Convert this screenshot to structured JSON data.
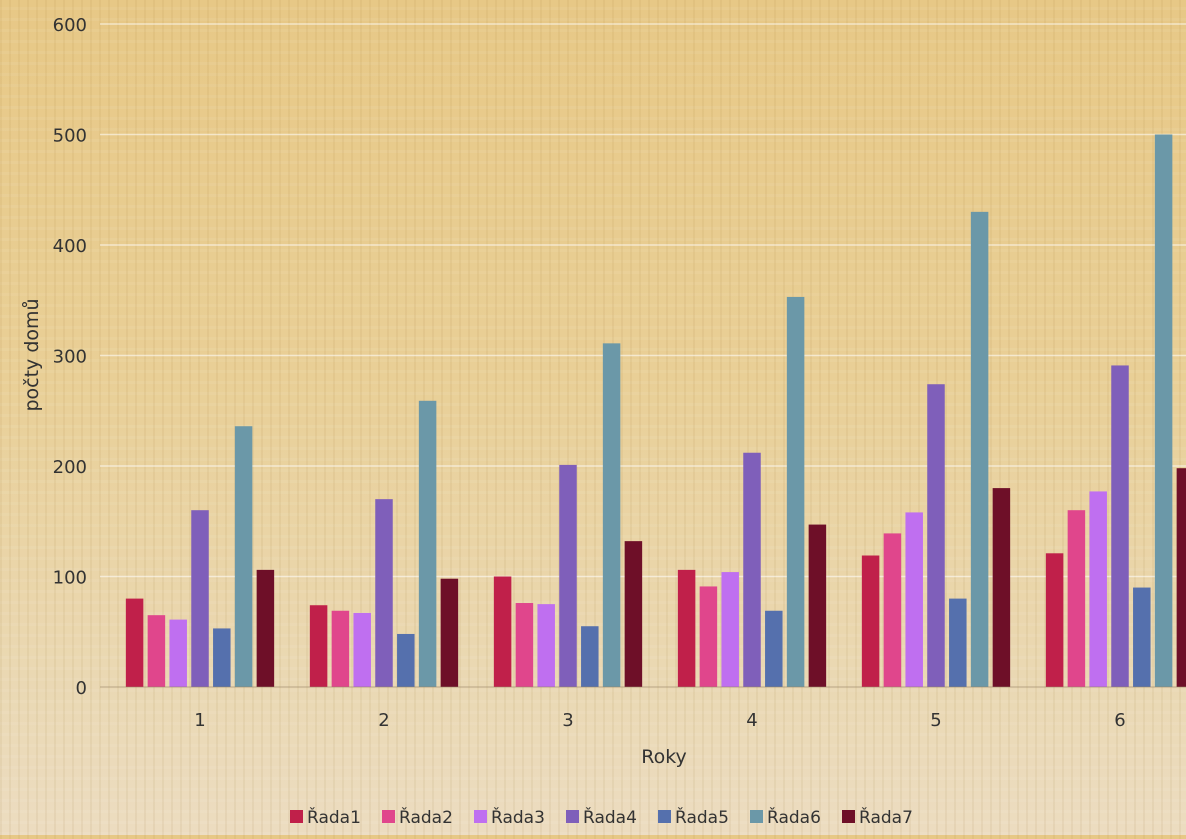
{
  "chart_data": {
    "type": "bar",
    "categories": [
      "1",
      "2",
      "3",
      "4",
      "5",
      "6"
    ],
    "xlabel": "Roky",
    "ylabel": "počty domů",
    "ylim": [
      0,
      600
    ],
    "yticks": [
      0,
      100,
      200,
      300,
      400,
      500,
      600
    ],
    "grid": true,
    "legend_position": "bottom",
    "series": [
      {
        "name": "Řada1",
        "color": "#c0204a",
        "values": [
          80,
          74,
          100,
          106,
          119,
          121
        ]
      },
      {
        "name": "Řada2",
        "color": "#e0468c",
        "values": [
          65,
          69,
          76,
          91,
          139,
          160
        ]
      },
      {
        "name": "Řada3",
        "color": "#bf6ff0",
        "values": [
          61,
          67,
          75,
          104,
          158,
          177
        ]
      },
      {
        "name": "Řada4",
        "color": "#7f5fba",
        "values": [
          160,
          170,
          201,
          212,
          274,
          291
        ]
      },
      {
        "name": "Řada5",
        "color": "#5570ad",
        "values": [
          53,
          48,
          55,
          69,
          80,
          90
        ]
      },
      {
        "name": "Řada6",
        "color": "#6b98a8",
        "values": [
          236,
          259,
          311,
          353,
          430,
          500
        ]
      },
      {
        "name": "Řada7",
        "color": "#6e0f28",
        "values": [
          106,
          98,
          132,
          147,
          180,
          198
        ]
      }
    ]
  }
}
